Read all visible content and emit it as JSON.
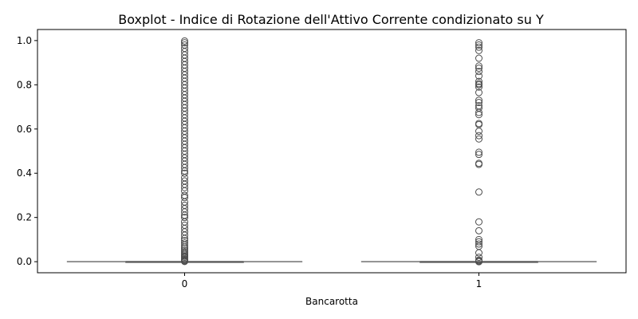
{
  "chart_data": {
    "type": "boxplot",
    "title": "Boxplot - Indice di Rotazione dell'Attivo Corrente condizionato su Y",
    "xlabel": "Bancarotta",
    "ylabel": "",
    "ylim": [
      -0.05,
      1.05
    ],
    "y_ticks": [
      "0.0",
      "0.2",
      "0.4",
      "0.6",
      "0.8",
      "1.0"
    ],
    "grid": false,
    "colors": {
      "box": "#808080",
      "outlier_edge": "#4d4d4d"
    },
    "categories": [
      "0",
      "1"
    ],
    "boxes": [
      {
        "category": "0",
        "median": 0.0,
        "q1": 0.0,
        "q3": 0.0,
        "whisker_low": 0.0,
        "whisker_high": 0.0,
        "outliers": [
          0.001,
          0.003,
          0.006,
          0.01,
          0.014,
          0.02,
          0.025,
          0.03,
          0.036,
          0.043,
          0.05,
          0.058,
          0.066,
          0.075,
          0.085,
          0.095,
          0.105,
          0.12,
          0.135,
          0.15,
          0.165,
          0.18,
          0.2,
          0.21,
          0.225,
          0.24,
          0.255,
          0.27,
          0.29,
          0.3,
          0.32,
          0.335,
          0.35,
          0.365,
          0.38,
          0.4,
          0.41,
          0.425,
          0.44,
          0.455,
          0.47,
          0.485,
          0.5,
          0.515,
          0.53,
          0.545,
          0.56,
          0.575,
          0.59,
          0.605,
          0.62,
          0.635,
          0.65,
          0.665,
          0.68,
          0.695,
          0.71,
          0.725,
          0.74,
          0.755,
          0.77,
          0.785,
          0.8,
          0.815,
          0.83,
          0.845,
          0.86,
          0.875,
          0.89,
          0.905,
          0.92,
          0.935,
          0.95,
          0.965,
          0.98,
          0.99,
          0.998
        ]
      },
      {
        "category": "1",
        "median": 0.0,
        "q1": 0.0,
        "q3": 0.0,
        "whisker_low": 0.0,
        "whisker_high": 0.0,
        "outliers": [
          0.0,
          0.003,
          0.007,
          0.02,
          0.04,
          0.07,
          0.08,
          0.09,
          0.1,
          0.14,
          0.18,
          0.315,
          0.44,
          0.445,
          0.485,
          0.495,
          0.555,
          0.57,
          0.59,
          0.62,
          0.625,
          0.665,
          0.675,
          0.695,
          0.705,
          0.72,
          0.73,
          0.765,
          0.79,
          0.8,
          0.805,
          0.815,
          0.84,
          0.86,
          0.875,
          0.885,
          0.92,
          0.955,
          0.97,
          0.98,
          0.99
        ]
      }
    ]
  }
}
